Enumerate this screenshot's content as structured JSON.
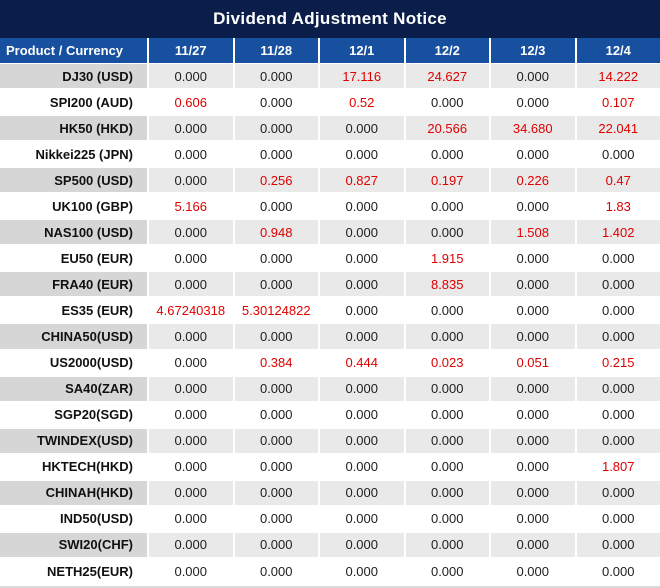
{
  "colors": {
    "title_bg": "#0a1e49",
    "header_bg": "#17509e",
    "stripe_product": "#d6d6d6",
    "stripe_values": "#e9e9e9",
    "value_text": "#202020",
    "highlight_red": "#e00000",
    "bottom_border": "#d9d9d9"
  },
  "chart_data": {
    "type": "table",
    "title": "Dividend Adjustment Notice",
    "columns": [
      "Product / Currency",
      "11/27",
      "11/28",
      "12/1",
      "12/2",
      "12/3",
      "12/4"
    ],
    "rows": [
      [
        "DJ30 (USD)",
        "0.000",
        "0.000",
        "17.116",
        "24.627",
        "0.000",
        "14.222"
      ],
      [
        "SPI200 (AUD)",
        "0.606",
        "0.000",
        "0.52",
        "0.000",
        "0.000",
        "0.107"
      ],
      [
        "HK50 (HKD)",
        "0.000",
        "0.000",
        "0.000",
        "20.566",
        "34.680",
        "22.041"
      ],
      [
        "Nikkei225 (JPN)",
        "0.000",
        "0.000",
        "0.000",
        "0.000",
        "0.000",
        "0.000"
      ],
      [
        "SP500 (USD)",
        "0.000",
        "0.256",
        "0.827",
        "0.197",
        "0.226",
        "0.47"
      ],
      [
        "UK100 (GBP)",
        "5.166",
        "0.000",
        "0.000",
        "0.000",
        "0.000",
        "1.83"
      ],
      [
        "NAS100 (USD)",
        "0.000",
        "0.948",
        "0.000",
        "0.000",
        "1.508",
        "1.402"
      ],
      [
        "EU50 (EUR)",
        "0.000",
        "0.000",
        "0.000",
        "1.915",
        "0.000",
        "0.000"
      ],
      [
        "FRA40 (EUR)",
        "0.000",
        "0.000",
        "0.000",
        "8.835",
        "0.000",
        "0.000"
      ],
      [
        "ES35 (EUR)",
        "4.67240318",
        "5.30124822",
        "0.000",
        "0.000",
        "0.000",
        "0.000"
      ],
      [
        "CHINA50(USD)",
        "0.000",
        "0.000",
        "0.000",
        "0.000",
        "0.000",
        "0.000"
      ],
      [
        "US2000(USD)",
        "0.000",
        "0.384",
        "0.444",
        "0.023",
        "0.051",
        "0.215"
      ],
      [
        "SA40(ZAR)",
        "0.000",
        "0.000",
        "0.000",
        "0.000",
        "0.000",
        "0.000"
      ],
      [
        "SGP20(SGD)",
        "0.000",
        "0.000",
        "0.000",
        "0.000",
        "0.000",
        "0.000"
      ],
      [
        "TWINDEX(USD)",
        "0.000",
        "0.000",
        "0.000",
        "0.000",
        "0.000",
        "0.000"
      ],
      [
        "HKTECH(HKD)",
        "0.000",
        "0.000",
        "0.000",
        "0.000",
        "0.000",
        "1.807"
      ],
      [
        "CHINAH(HKD)",
        "0.000",
        "0.000",
        "0.000",
        "0.000",
        "0.000",
        "0.000"
      ],
      [
        "IND50(USD)",
        "0.000",
        "0.000",
        "0.000",
        "0.000",
        "0.000",
        "0.000"
      ],
      [
        "SWI20(CHF)",
        "0.000",
        "0.000",
        "0.000",
        "0.000",
        "0.000",
        "0.000"
      ],
      [
        "NETH25(EUR)",
        "0.000",
        "0.000",
        "0.000",
        "0.000",
        "0.000",
        "0.000"
      ]
    ],
    "layout": {
      "zebra_striping": true,
      "nonzero_values_highlighted_red": true,
      "product_column_alignment": "right",
      "value_column_alignment": "center"
    }
  }
}
